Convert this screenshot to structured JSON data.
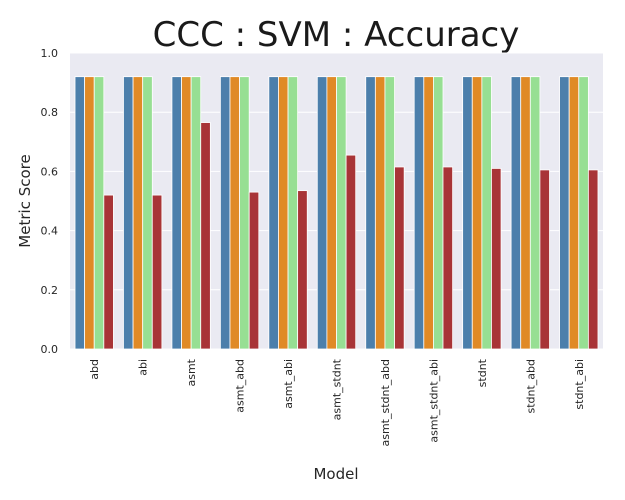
{
  "chart_data": {
    "type": "bar",
    "title": "CCC : SVM : Accuracy",
    "xlabel": "Model",
    "ylabel": "Metric Score",
    "ylim": [
      0,
      1.0
    ],
    "yticks": [
      "0.0",
      "0.2",
      "0.4",
      "0.6",
      "0.8",
      "1.0"
    ],
    "grid": true,
    "categories": [
      "abd",
      "abi",
      "asmt",
      "asmt_abd",
      "asmt_abi",
      "asmt_stdnt",
      "asmt_stdnt_abd",
      "asmt_stdnt_abi",
      "stdnt",
      "stdnt_abd",
      "stdnt_abi"
    ],
    "series": [
      {
        "color": "#4c7fab",
        "values": [
          0.92,
          0.92,
          0.92,
          0.92,
          0.92,
          0.92,
          0.92,
          0.92,
          0.92,
          0.92,
          0.92
        ]
      },
      {
        "color": "#e08a26",
        "values": [
          0.92,
          0.92,
          0.92,
          0.92,
          0.92,
          0.92,
          0.92,
          0.92,
          0.92,
          0.92,
          0.92
        ]
      },
      {
        "color": "#97df93",
        "values": [
          0.92,
          0.92,
          0.92,
          0.92,
          0.92,
          0.92,
          0.92,
          0.92,
          0.92,
          0.92,
          0.92
        ]
      },
      {
        "color": "#a83437",
        "values": [
          0.52,
          0.52,
          0.765,
          0.53,
          0.535,
          0.655,
          0.615,
          0.615,
          0.61,
          0.605,
          0.605
        ]
      }
    ],
    "background": "#eaeaf2"
  }
}
